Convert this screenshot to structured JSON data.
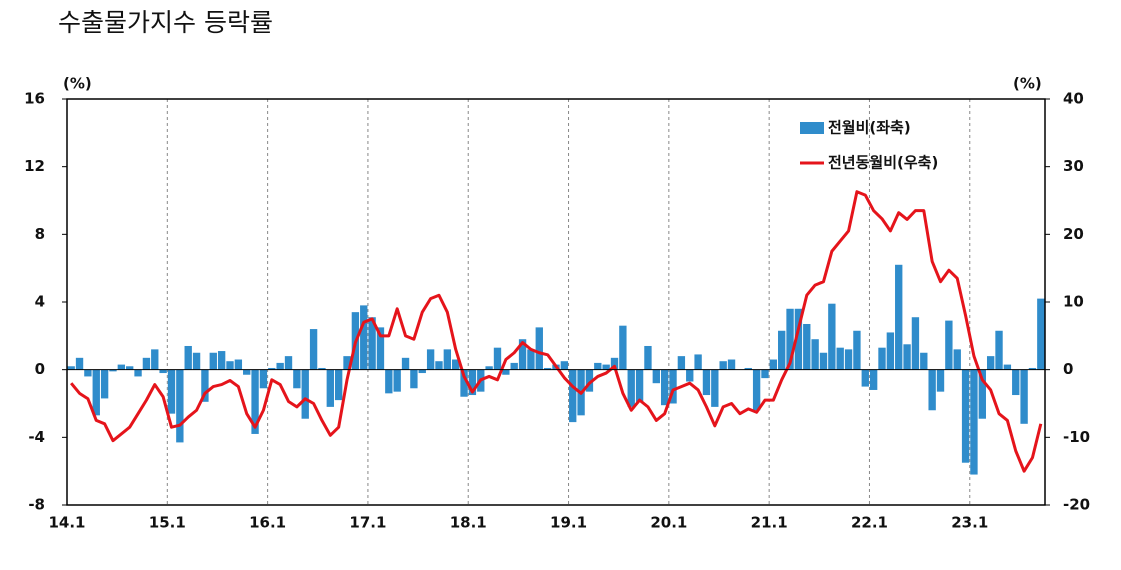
{
  "chart_data": {
    "type": "combo",
    "title": "수출물가지수 등락률",
    "y_label": "(%)",
    "y2_label": "(%)",
    "categories": [
      "14.1",
      null,
      null,
      null,
      null,
      null,
      null,
      null,
      null,
      null,
      null,
      null,
      "15.1",
      null,
      null,
      null,
      null,
      null,
      null,
      null,
      null,
      null,
      null,
      null,
      "16.1",
      null,
      null,
      null,
      null,
      null,
      null,
      null,
      null,
      null,
      null,
      null,
      "17.1",
      null,
      null,
      null,
      null,
      null,
      null,
      null,
      null,
      null,
      null,
      null,
      "18.1",
      null,
      null,
      null,
      null,
      null,
      null,
      null,
      null,
      null,
      null,
      null,
      "19.1",
      null,
      null,
      null,
      null,
      null,
      null,
      null,
      null,
      null,
      null,
      null,
      "20.1",
      null,
      null,
      null,
      null,
      null,
      null,
      null,
      null,
      null,
      null,
      null,
      "21.1",
      null,
      null,
      null,
      null,
      null,
      null,
      null,
      null,
      null,
      null,
      null,
      "22.1",
      null,
      null,
      null,
      null,
      null,
      null,
      null,
      null,
      null,
      null,
      null,
      "23.1",
      null,
      null,
      null,
      null,
      null,
      null,
      null,
      null
    ],
    "series": [
      {
        "name": "전월비(좌축)",
        "type": "bar",
        "color": "#2f8ccb",
        "values": [
          0.2,
          0.7,
          -0.4,
          -2.7,
          -1.7,
          -0.1,
          0.3,
          0.2,
          -0.4,
          0.7,
          1.2,
          -0.2,
          -2.6,
          -4.3,
          1.4,
          1.0,
          -1.9,
          1.0,
          1.1,
          0.5,
          0.6,
          -0.3,
          -3.8,
          -1.1,
          0.1,
          0.4,
          0.8,
          -1.1,
          -2.9,
          2.4,
          0.1,
          -2.2,
          -1.8,
          0.8,
          3.4,
          3.8,
          3.1,
          2.5,
          -1.4,
          -1.3,
          0.7,
          -1.1,
          -0.2,
          1.2,
          0.5,
          1.2,
          0.6,
          -1.6,
          -1.5,
          -1.3,
          0.2,
          1.3,
          -0.3,
          0.4,
          1.8,
          1.2,
          2.5,
          0.1,
          0.3,
          0.5,
          -3.1,
          -2.7,
          -1.3,
          0.4,
          0.3,
          0.7,
          2.6,
          -2.2,
          -1.9,
          1.4,
          -0.8,
          -2.1,
          -2.0,
          0.8,
          -0.7,
          0.9,
          -1.5,
          -2.2,
          0.5,
          0.6,
          0.0,
          0.1,
          -2.4,
          -0.5,
          0.6,
          2.3,
          3.6,
          3.6,
          2.7,
          1.8,
          1.0,
          3.9,
          1.3,
          1.2,
          2.3,
          -1.0,
          -1.2,
          1.3,
          2.2,
          6.2,
          1.5,
          3.1,
          1.0,
          -2.4,
          -1.3,
          2.9,
          1.2,
          -5.5,
          -6.2,
          -2.9,
          0.8,
          2.3,
          0.3,
          -1.5,
          -3.2,
          0.1,
          4.2
        ]
      },
      {
        "name": "전년동월비(우축)",
        "type": "line",
        "axis": "y2",
        "color": "#e5141b",
        "values": [
          -2,
          -3.5,
          -4.3,
          -7.5,
          -8,
          -10.5,
          -9.5,
          -8.5,
          -6.5,
          -4.5,
          -2.2,
          -4,
          -8.5,
          -8.2,
          -7,
          -6,
          -3.5,
          -2.5,
          -2.2,
          -1.6,
          -2.5,
          -6.5,
          -8.5,
          -6,
          -1.5,
          -2.2,
          -4.7,
          -5.5,
          -4.3,
          -5,
          -7.5,
          -9.7,
          -8.5,
          -1.5,
          4,
          7,
          7.5,
          5,
          5,
          9,
          5,
          4.5,
          8.5,
          10.5,
          11,
          8.5,
          3,
          -1,
          -3.3,
          -1.5,
          -1,
          -1.5,
          1.5,
          2.5,
          4,
          3,
          2.5,
          2.2,
          0.5,
          -1.2,
          -2.5,
          -3.5,
          -2,
          -1,
          -0.5,
          0.5,
          -3.5,
          -6,
          -4.5,
          -5.5,
          -7.5,
          -6.5,
          -3,
          -2.5,
          -2,
          -3,
          -5.5,
          -8.3,
          -5.5,
          -5,
          -6.5,
          -5.8,
          -6.3,
          -4.5,
          -4.5,
          -1.5,
          1,
          6,
          11,
          12.5,
          13,
          17.5,
          19,
          20.5,
          26.3,
          25.8,
          23.5,
          22.3,
          20.5,
          23.2,
          22.2,
          23.5,
          23.5,
          16,
          13,
          14.7,
          13.5,
          8,
          2,
          -1.5,
          -3,
          -6.5,
          -7.5,
          -12,
          -15,
          -13,
          -8
        ]
      }
    ],
    "ylim": [
      -8,
      16
    ],
    "yticks": [
      -8,
      -4,
      0,
      4,
      8,
      12,
      16
    ],
    "y2lim": [
      -20,
      40
    ],
    "y2ticks": [
      -20,
      -10,
      0,
      10,
      20,
      30,
      40
    ],
    "x_grid": true,
    "legend": "upper right"
  }
}
